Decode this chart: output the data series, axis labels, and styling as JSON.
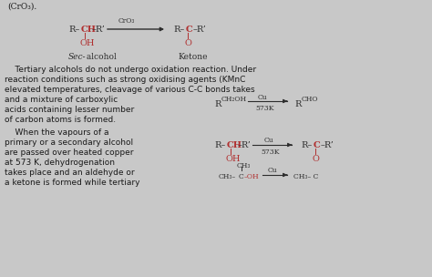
{
  "bg_color": "#c8c8c8",
  "text_color": "#1a1a1a",
  "chem_color_red": "#b03030",
  "chem_color_dark": "#2c2c2c",
  "font_size_main": 6.5,
  "font_size_chem": 7.0,
  "font_size_small": 5.5,
  "top_label": "(CrO₃).",
  "para1_lines": [
    "    Tertiary alcohols do not undergo oxidation reaction. Under",
    "reaction conditions such as strong oxidising agents (KMnC",
    "elevated temperatures, cleavage of various C-C bonds takes",
    "and a mixture of carboxylic",
    "acids containing lesser number",
    "of carbon atoms is formed."
  ],
  "para2_lines": [
    "    When the vapours of a",
    "primary or a secondary alcohol",
    "are passed over heated copper",
    "at 573 K, dehydrogenation",
    "takes place and an aldehyde or",
    "a ketone is formed while tertiary"
  ]
}
